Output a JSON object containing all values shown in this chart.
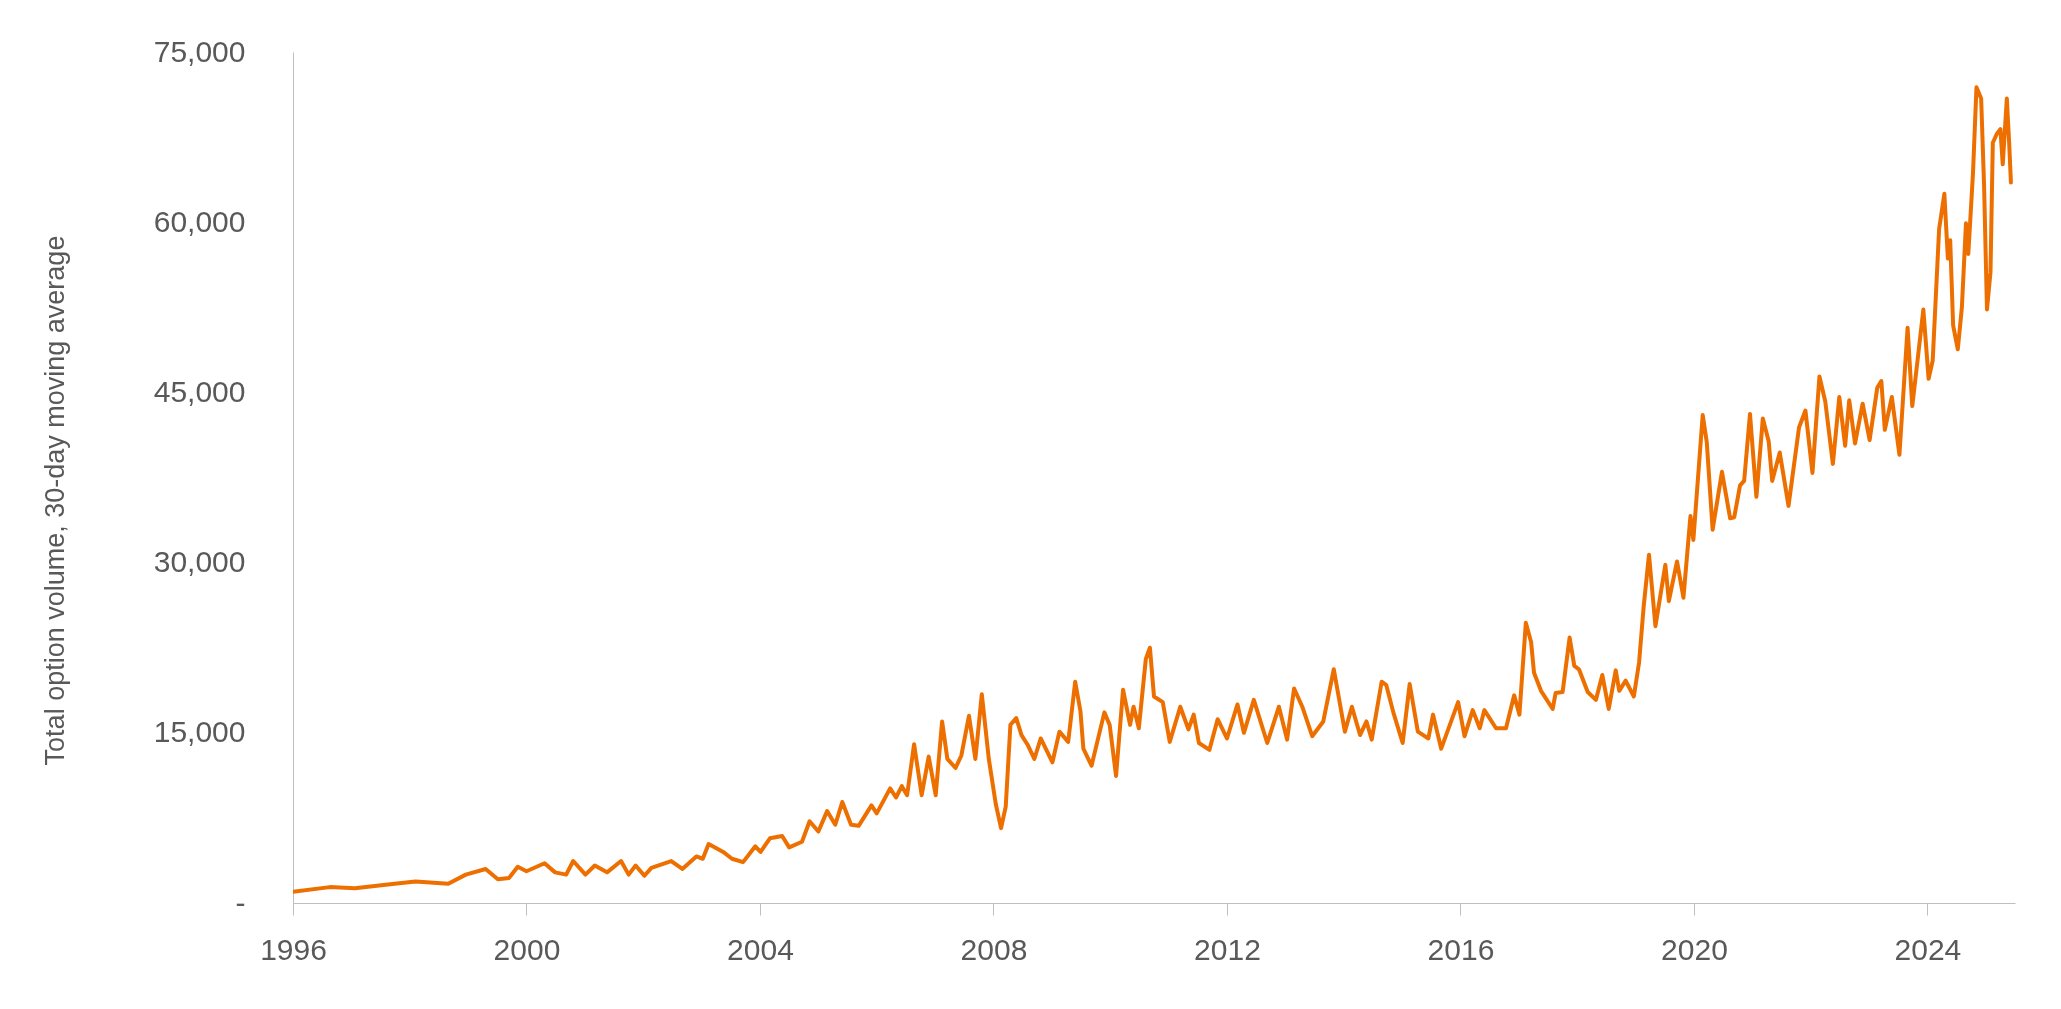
{
  "chart_data": {
    "type": "line",
    "ylabel": "Total option volume, 30-day moving average",
    "x": [
      1996.0,
      1996.63,
      1997.06,
      1997.74,
      1998.1,
      1998.66,
      1998.96,
      1999.3,
      1999.51,
      1999.7,
      1999.85,
      2000.0,
      2000.31,
      2000.49,
      2000.68,
      2000.8,
      2001.01,
      2001.17,
      2001.38,
      2001.62,
      2001.75,
      2001.87,
      2002.02,
      2002.14,
      2002.48,
      2002.67,
      2002.91,
      2003.02,
      2003.12,
      2003.37,
      2003.52,
      2003.71,
      2003.92,
      2004.01,
      2004.17,
      2004.38,
      2004.5,
      2004.72,
      2004.85,
      2005.0,
      2005.15,
      2005.29,
      2005.41,
      2005.56,
      2005.69,
      2005.91,
      2006.0,
      2006.23,
      2006.33,
      2006.43,
      2006.52,
      2006.64,
      2006.77,
      2006.89,
      2007.01,
      2007.12,
      2007.21,
      2007.35,
      2007.45,
      2007.58,
      2007.69,
      2007.8,
      2007.92,
      2008.04,
      2008.13,
      2008.21,
      2008.29,
      2008.39,
      2008.48,
      2008.59,
      2008.7,
      2008.81,
      2009.01,
      2009.13,
      2009.28,
      2009.4,
      2009.49,
      2009.54,
      2009.68,
      2009.9,
      2009.99,
      2010.1,
      2010.22,
      2010.34,
      2010.4,
      2010.49,
      2010.61,
      2010.68,
      2010.75,
      2010.9,
      2011.02,
      2011.2,
      2011.34,
      2011.43,
      2011.52,
      2011.7,
      2011.84,
      2012.0,
      2012.18,
      2012.29,
      2012.46,
      2012.69,
      2012.89,
      2013.03,
      2013.15,
      2013.29,
      2013.46,
      2013.65,
      2013.83,
      2014.02,
      2014.14,
      2014.28,
      2014.39,
      2014.48,
      2014.65,
      2014.73,
      2014.85,
      2015.01,
      2015.13,
      2015.27,
      2015.45,
      2015.53,
      2015.67,
      2015.96,
      2016.07,
      2016.21,
      2016.33,
      2016.41,
      2016.61,
      2016.78,
      2016.92,
      2017.01,
      2017.12,
      2017.21,
      2017.26,
      2017.38,
      2017.58,
      2017.63,
      2017.75,
      2017.87,
      2017.95,
      2018.03,
      2018.18,
      2018.32,
      2018.43,
      2018.54,
      2018.66,
      2018.72,
      2018.83,
      2018.97,
      2019.06,
      2019.14,
      2019.23,
      2019.34,
      2019.51,
      2019.57,
      2019.71,
      2019.82,
      2019.94,
      2019.99,
      2020.15,
      2020.22,
      2020.32,
      2020.48,
      2020.62,
      2020.69,
      2020.79,
      2020.86,
      2020.96,
      2021.07,
      2021.18,
      2021.28,
      2021.34,
      2021.47,
      2021.62,
      2021.8,
      2021.91,
      2022.03,
      2022.15,
      2022.25,
      2022.38,
      2022.49,
      2022.59,
      2022.66,
      2022.76,
      2022.89,
      2023.01,
      2023.14,
      2023.21,
      2023.27,
      2023.39,
      2023.52,
      2023.66,
      2023.74,
      2023.83,
      2023.93,
      2024.02,
      2024.09,
      2024.2,
      2024.29,
      2024.35,
      2024.39,
      2024.44,
      2024.52,
      2024.59,
      2024.66,
      2024.7,
      2024.78,
      2024.84,
      2024.92,
      2024.97,
      2025.02,
      2025.08,
      2025.12,
      2025.19,
      2025.25,
      2025.29,
      2025.36,
      2025.4,
      2025.43
    ],
    "series": [
      {
        "color": "#ed6f00",
        "values": [
          1000,
          1400,
          1300,
          1700,
          1900,
          1700,
          2500,
          3000,
          2100,
          2200,
          3200,
          2800,
          3500,
          2700,
          2500,
          3700,
          2500,
          3300,
          2700,
          3700,
          2500,
          3300,
          2400,
          3100,
          3700,
          3000,
          4100,
          3900,
          5200,
          4500,
          3900,
          3600,
          5000,
          4500,
          5700,
          5900,
          4900,
          5400,
          7200,
          6300,
          8100,
          6900,
          8900,
          6900,
          6800,
          8600,
          7900,
          10100,
          9300,
          10300,
          9500,
          14000,
          9500,
          12900,
          9500,
          16000,
          12700,
          11900,
          13000,
          16500,
          12700,
          18400,
          12700,
          8700,
          6600,
          8500,
          15700,
          16300,
          14800,
          13900,
          12700,
          14500,
          12400,
          15100,
          14200,
          19500,
          16900,
          13600,
          12100,
          16800,
          15700,
          11200,
          18800,
          15700,
          17300,
          15400,
          21500,
          22500,
          18200,
          17700,
          14200,
          17300,
          15300,
          16600,
          14100,
          13500,
          16200,
          14500,
          17500,
          15000,
          17900,
          14100,
          17300,
          14400,
          18900,
          17300,
          14700,
          16000,
          20600,
          15100,
          17300,
          14800,
          16000,
          14400,
          19500,
          19200,
          16800,
          14100,
          19300,
          15100,
          14500,
          16600,
          13600,
          17700,
          14700,
          17000,
          15400,
          17000,
          15400,
          15400,
          18300,
          16600,
          24700,
          23000,
          20300,
          18700,
          17100,
          18500,
          18600,
          23400,
          20900,
          20600,
          18600,
          17900,
          20100,
          17100,
          20500,
          18700,
          19600,
          18200,
          21200,
          26200,
          30700,
          24400,
          29800,
          26600,
          30100,
          26900,
          34100,
          32000,
          43000,
          40600,
          32900,
          38000,
          33900,
          34000,
          36800,
          37200,
          43100,
          35800,
          42700,
          40700,
          37200,
          39700,
          35000,
          41900,
          43400,
          37900,
          46400,
          44200,
          38700,
          44600,
          40300,
          44300,
          40500,
          44000,
          40800,
          45400,
          46000,
          41700,
          44600,
          39500,
          50700,
          43800,
          47800,
          52300,
          46200,
          47800,
          59400,
          62500,
          56800,
          58400,
          50900,
          48800,
          52500,
          59900,
          57200,
          64300,
          71900,
          70900,
          63300,
          52300,
          55600,
          67000,
          67800,
          68200,
          65100,
          70900,
          67000,
          63500
        ]
      }
    ],
    "xlim": [
      1996,
      2025.5
    ],
    "xticks": [
      1996,
      2000,
      2004,
      2008,
      2012,
      2016,
      2020,
      2024
    ],
    "ylim": [
      0,
      75000
    ],
    "yticks": [
      {
        "value": 0,
        "label": "-"
      },
      {
        "value": 15000,
        "label": "15,000"
      },
      {
        "value": 30000,
        "label": "30,000"
      },
      {
        "value": 45000,
        "label": "45,000"
      },
      {
        "value": 60000,
        "label": "60,000"
      },
      {
        "value": 75000,
        "label": "75,000"
      }
    ],
    "line_style": "solid"
  }
}
